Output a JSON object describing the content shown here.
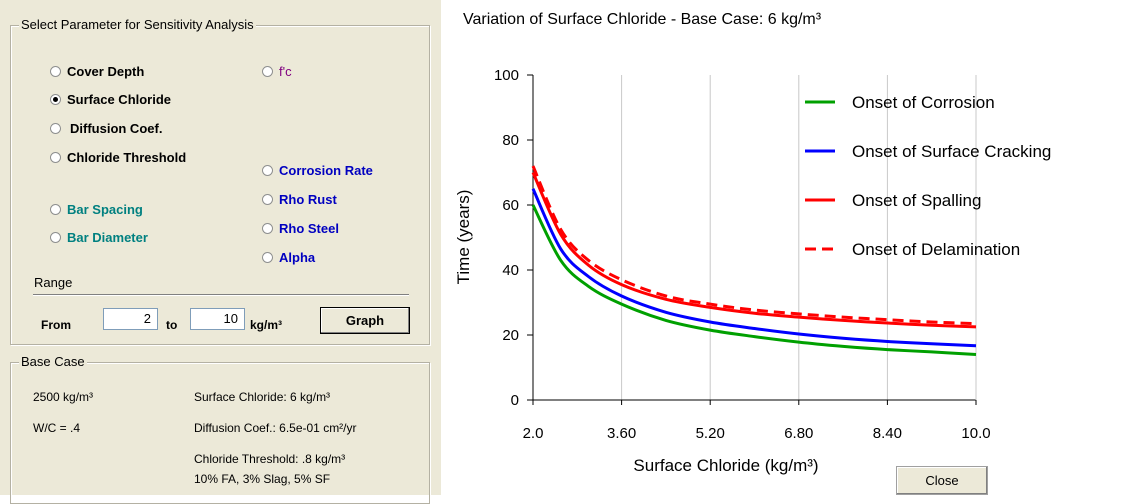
{
  "selection_panel": {
    "title": "Select Parameter for Sensitivity Analysis",
    "options": [
      {
        "label": "Cover Depth",
        "selected": false,
        "color": "#000000"
      },
      {
        "label": "Surface Chloride",
        "selected": true,
        "color": "#000000"
      },
      {
        "label": "Diffusion Coef.",
        "selected": false,
        "color": "#000000"
      },
      {
        "label": "Chloride Threshold",
        "selected": false,
        "color": "#000000"
      },
      {
        "label": "Bar Spacing",
        "selected": false,
        "color": "#008080"
      },
      {
        "label": "Bar Diameter",
        "selected": false,
        "color": "#008080"
      },
      {
        "label": "f'c",
        "selected": false,
        "color": "#800080"
      },
      {
        "label": "Corrosion Rate",
        "selected": false,
        "color": "#0000c0"
      },
      {
        "label": "Rho Rust",
        "selected": false,
        "color": "#0000c0"
      },
      {
        "label": "Rho Steel",
        "selected": false,
        "color": "#0000c0"
      },
      {
        "label": "Alpha",
        "selected": false,
        "color": "#0000c0"
      }
    ]
  },
  "range": {
    "title": "Range",
    "from_label": "From",
    "from_value": "2",
    "to_label": "to",
    "to_value": "10",
    "unit": "kg/m³",
    "graph_button": "Graph"
  },
  "base_case": {
    "title": "Base Case",
    "density": "2500 kg/m³",
    "wc": "W/C = .4",
    "surface_chloride": "Surface Chloride: 6 kg/m³",
    "diffusion": "Diffusion Coef.: 6.5e-01 cm²/yr",
    "threshold": "Chloride Threshold: .8 kg/m³",
    "mix": "10% FA, 3% Slag, 5% SF"
  },
  "close_button": "Close",
  "chart_data": {
    "type": "line",
    "title": "Variation of Surface Chloride - Base Case: 6 kg/m³",
    "xlabel": "Surface Chloride (kg/m³)",
    "ylabel": "Time (years)",
    "xlim": [
      2.0,
      10.0
    ],
    "ylim": [
      0,
      100
    ],
    "xticks": [
      "2.0",
      "3.60",
      "5.20",
      "6.80",
      "8.40",
      "10.0"
    ],
    "yticks": [
      "0",
      "20",
      "40",
      "60",
      "80",
      "100"
    ],
    "grid": true,
    "legend_position": "top-right",
    "x": [
      2.0,
      2.5,
      3.0,
      3.6,
      4.4,
      5.2,
      6.0,
      6.8,
      7.6,
      8.4,
      9.2,
      10.0
    ],
    "series": [
      {
        "name": "Onset of Corrosion",
        "color": "#00a000",
        "dash": false,
        "values": [
          60,
          43,
          35,
          29.5,
          24.5,
          21.5,
          19.5,
          17.8,
          16.5,
          15.5,
          14.8,
          14
        ]
      },
      {
        "name": "Onset of Surface Cracking",
        "color": "#0000ff",
        "dash": false,
        "values": [
          65,
          46.5,
          38,
          32,
          27,
          24,
          22,
          20.3,
          19,
          18,
          17.3,
          16.7
        ]
      },
      {
        "name": "Onset of Spalling",
        "color": "#ff0000",
        "dash": false,
        "values": [
          70,
          51,
          41.5,
          35.5,
          31,
          28.5,
          26.7,
          25.5,
          24.5,
          23.7,
          23,
          22.5
        ]
      },
      {
        "name": "Onset of Delamination",
        "color": "#ff0000",
        "dash": true,
        "values": [
          72,
          52.5,
          43,
          37,
          32,
          29.5,
          27.7,
          26.5,
          25.5,
          24.7,
          24,
          23.5
        ]
      }
    ]
  }
}
